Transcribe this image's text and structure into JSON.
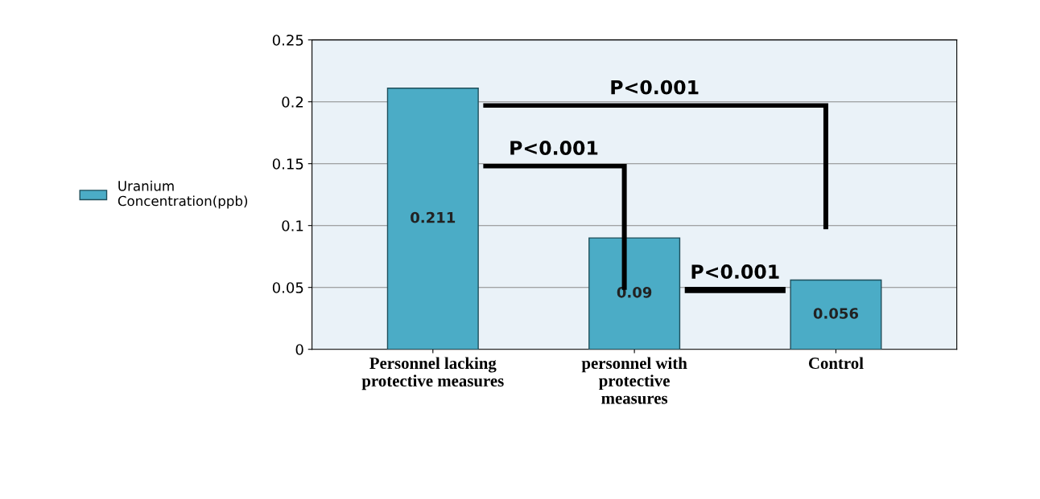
{
  "chart_data": {
    "type": "bar",
    "categories": [
      "Personnel lacking\nprotective measures",
      "personnel with\nprotective\nmeasures",
      "Control"
    ],
    "series": [
      {
        "name": "Uranium\nConcentration(ppb)",
        "color": "#4bacc6",
        "values": [
          0.211,
          0.09,
          0.056
        ]
      }
    ],
    "ylim": [
      0,
      0.25
    ],
    "yticks": [
      0,
      0.05,
      0.1,
      0.15,
      0.2,
      0.25
    ],
    "grid": "y",
    "legend": "left",
    "data_labels": true,
    "annotations": [
      "P<0.001",
      "P<0.001",
      "P<0.001"
    ]
  }
}
